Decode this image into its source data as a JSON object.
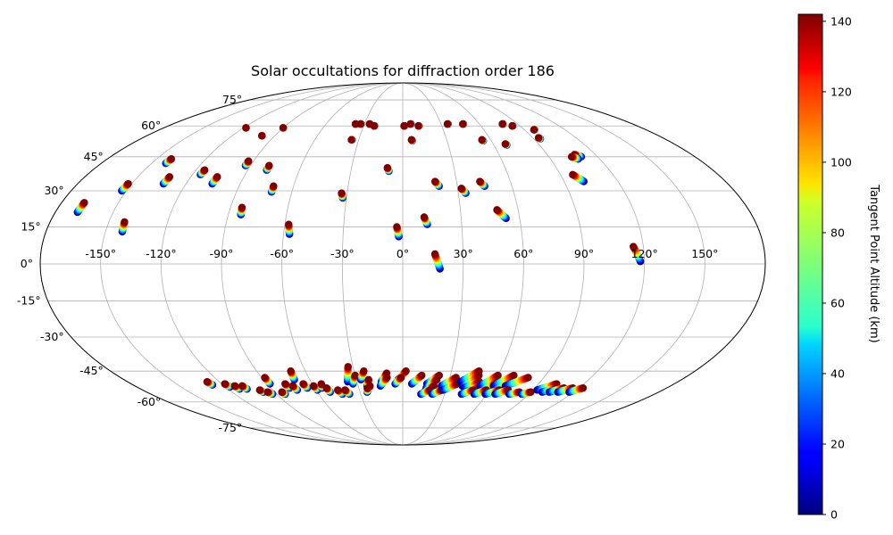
{
  "chart_data": {
    "type": "scatter",
    "projection": "mollweide",
    "title": "Solar occultations for diffraction order 186",
    "xlabel": "",
    "ylabel": "",
    "grid": true,
    "lon_ticks": [
      -150,
      -120,
      -90,
      -60,
      -30,
      0,
      30,
      60,
      90,
      120,
      150
    ],
    "lon_tick_labels": [
      "-150°",
      "-120°",
      "-90°",
      "-60°",
      "-30°",
      "0°",
      "30°",
      "60°",
      "90°",
      "120°",
      "150°"
    ],
    "lat_ticks": [
      -75,
      -60,
      -45,
      -30,
      -15,
      0,
      15,
      30,
      45,
      60,
      75
    ],
    "lat_tick_labels": [
      "-75°",
      "-60°",
      "-45°",
      "-30°",
      "-15°",
      "0°",
      "15°",
      "30°",
      "45°",
      "60°",
      "75°"
    ],
    "colorbar": {
      "label": "Tangent Point Altitude (km)",
      "range": [
        0,
        142
      ],
      "ticks": [
        0,
        20,
        40,
        60,
        80,
        100,
        120,
        140
      ],
      "tick_labels": [
        "0",
        "20",
        "40",
        "60",
        "80",
        "100",
        "120",
        "140"
      ],
      "colormap": "jet"
    },
    "tracks_note_units": "each track: longitude/latitude (deg) at top altitude 142 km and at bottom altitude 0 km",
    "tracks": [
      {
        "lon_top": -168,
        "lat_top": 25,
        "lon_bot": -168.5,
        "lat_bot": 21
      },
      {
        "lon_top": -152,
        "lat_top": 33,
        "lon_bot": -152.5,
        "lat_bot": 30
      },
      {
        "lon_top": -142,
        "lat_top": 17,
        "lon_bot": -141.5,
        "lat_bot": 13
      },
      {
        "lon_top": -141,
        "lat_top": 44,
        "lon_bot": -141.5,
        "lat_bot": 42
      },
      {
        "lon_top": -132,
        "lat_top": 36,
        "lon_bot": -132.5,
        "lat_bot": 33
      },
      {
        "lon_top": -115,
        "lat_top": 39,
        "lon_bot": -115.5,
        "lat_bot": 37
      },
      {
        "lon_top": -105,
        "lat_top": 36,
        "lon_bot": -105.5,
        "lat_bot": 33
      },
      {
        "lon_top": -93,
        "lat_top": 43,
        "lon_bot": -93,
        "lat_bot": 41
      },
      {
        "lon_top": -84,
        "lat_top": 23,
        "lon_bot": -83.5,
        "lat_bot": 20
      },
      {
        "lon_top": -79,
        "lat_top": 41,
        "lon_bot": -79,
        "lat_bot": 39
      },
      {
        "lon_top": -71,
        "lat_top": 32,
        "lon_bot": -71,
        "lat_bot": 29.5
      },
      {
        "lon_top": -58,
        "lat_top": 16,
        "lon_bot": -57,
        "lat_bot": 12
      },
      {
        "lon_top": -33,
        "lat_top": 29,
        "lon_bot": -32,
        "lat_bot": 27
      },
      {
        "lon_top": -9,
        "lat_top": 40,
        "lon_bot": -8,
        "lat_bot": 38.5
      },
      {
        "lon_top": -3,
        "lat_top": 15,
        "lon_bot": -2,
        "lat_bot": 11
      },
      {
        "lon_top": 11,
        "lat_top": 19,
        "lon_bot": 12.5,
        "lat_bot": 16
      },
      {
        "lon_top": 16,
        "lat_top": 4,
        "lon_bot": 18.5,
        "lat_bot": -2
      },
      {
        "lon_top": 18,
        "lat_top": 34,
        "lon_bot": 20,
        "lat_bot": 32
      },
      {
        "lon_top": 32,
        "lat_top": 31,
        "lon_bot": 34,
        "lat_bot": 29
      },
      {
        "lon_top": 43,
        "lat_top": 34,
        "lon_bot": 45,
        "lat_bot": 32
      },
      {
        "lon_top": 49,
        "lat_top": 22,
        "lon_bot": 53,
        "lat_bot": 18.5
      },
      {
        "lon_top": 97,
        "lat_top": 37,
        "lon_bot": 101,
        "lat_bot": 34
      },
      {
        "lon_top": 107,
        "lat_top": 46,
        "lon_bot": 110,
        "lat_bot": 45
      },
      {
        "lon_top": 115,
        "lat_top": 7,
        "lon_bot": 118,
        "lat_bot": 1
      },
      {
        "lon_top": -37,
        "lat_top": 61,
        "lon_bot": -36.5,
        "lat_bot": 61
      },
      {
        "lon_top": -33,
        "lat_top": 61,
        "lon_bot": -32.5,
        "lat_bot": 61
      },
      {
        "lon_top": -26,
        "lat_top": 61,
        "lon_bot": -25.5,
        "lat_bot": 61
      },
      {
        "lon_top": -22,
        "lat_top": 60,
        "lon_bot": -21.5,
        "lat_bot": 60
      },
      {
        "lon_top": -35,
        "lat_top": 53,
        "lon_bot": -34.5,
        "lat_bot": 53
      },
      {
        "lon_top": 1,
        "lat_top": 60,
        "lon_bot": 1.5,
        "lat_bot": 60
      },
      {
        "lon_top": 6,
        "lat_top": 61,
        "lon_bot": 6.5,
        "lat_bot": 61
      },
      {
        "lon_top": 12,
        "lat_top": 60,
        "lon_bot": 12.5,
        "lat_bot": 60
      },
      {
        "lon_top": 6,
        "lat_top": 53,
        "lon_bot": 6.5,
        "lat_bot": 52.5
      },
      {
        "lon_top": 35,
        "lat_top": 61,
        "lon_bot": 35.5,
        "lat_bot": 61
      },
      {
        "lon_top": 47,
        "lat_top": 61,
        "lon_bot": 47.5,
        "lat_bot": 61
      },
      {
        "lon_top": 78,
        "lat_top": 61,
        "lon_bot": 78.5,
        "lat_bot": 61
      },
      {
        "lon_top": 84,
        "lat_top": 60,
        "lon_bot": 84.5,
        "lat_bot": 60
      },
      {
        "lon_top": 54,
        "lat_top": 53,
        "lon_bot": 54.5,
        "lat_bot": 52.5
      },
      {
        "lon_top": 68,
        "lat_top": 51,
        "lon_bot": 68.5,
        "lat_bot": 50.5
      },
      {
        "lon_top": 94,
        "lat_top": 54,
        "lon_bot": 94.5,
        "lat_bot": 53.5
      },
      {
        "lon_top": 97,
        "lat_top": 58,
        "lon_bot": 97.5,
        "lat_bot": 58
      },
      {
        "lon_top": 104,
        "lat_top": 45,
        "lon_bot": 107,
        "lat_bot": 44
      },
      {
        "lon_top": -118,
        "lat_top": 59,
        "lon_bot": -118,
        "lat_bot": 59
      },
      {
        "lon_top": -99,
        "lat_top": 55,
        "lon_bot": -99,
        "lat_bot": 55
      },
      {
        "lon_top": -90,
        "lat_top": 59,
        "lon_bot": -90,
        "lat_bot": 59
      },
      {
        "lon_top": -128,
        "lat_top": -50,
        "lon_bot": -127,
        "lat_bot": -51.5
      },
      {
        "lon_top": -118,
        "lat_top": -51,
        "lon_bot": -117,
        "lat_bot": -52.5
      },
      {
        "lon_top": -113,
        "lat_top": -52,
        "lon_bot": -112,
        "lat_bot": -53.5
      },
      {
        "lon_top": -108,
        "lat_top": -52,
        "lon_bot": -107,
        "lat_bot": -53.5
      },
      {
        "lon_top": -99,
        "lat_top": -54,
        "lon_bot": -98,
        "lat_bot": -55
      },
      {
        "lon_top": -95,
        "lat_top": -55,
        "lon_bot": -93,
        "lat_bot": -56
      },
      {
        "lon_top": -88,
        "lat_top": -48,
        "lon_bot": -88,
        "lat_bot": -51
      },
      {
        "lon_top": -85,
        "lat_top": -55,
        "lon_bot": -84,
        "lat_bot": -56
      },
      {
        "lon_top": -78,
        "lat_top": -51,
        "lon_bot": -77,
        "lat_bot": -53
      },
      {
        "lon_top": -74,
        "lat_top": -52,
        "lon_bot": -73,
        "lat_bot": -54
      },
      {
        "lon_top": -69,
        "lat_top": -45,
        "lon_bot": -70,
        "lat_bot": -49
      },
      {
        "lon_top": -66,
        "lat_top": -51,
        "lon_bot": -65,
        "lat_bot": -53
      },
      {
        "lon_top": -60,
        "lat_top": -52,
        "lon_bot": -59,
        "lat_bot": -54
      },
      {
        "lon_top": -54,
        "lat_top": -51,
        "lon_bot": -55,
        "lat_bot": -53
      },
      {
        "lon_top": -52,
        "lat_top": -53,
        "lon_bot": -51,
        "lat_bot": -55
      },
      {
        "lon_top": -45,
        "lat_top": -54,
        "lon_bot": -43,
        "lat_bot": -56
      },
      {
        "lon_top": -40,
        "lat_top": -54,
        "lon_bot": -38,
        "lat_bot": -56
      },
      {
        "lon_top": -33,
        "lat_top": -43,
        "lon_bot": -36,
        "lat_bot": -50
      },
      {
        "lon_top": -30,
        "lat_top": -47,
        "lon_bot": -33,
        "lat_bot": -51
      },
      {
        "lon_top": -24,
        "lat_top": -45,
        "lon_bot": -27,
        "lat_bot": -49
      },
      {
        "lon_top": -22,
        "lat_top": -49,
        "lon_bot": -24,
        "lat_bot": -52
      },
      {
        "lon_top": -22,
        "lat_top": -52,
        "lon_bot": -24,
        "lat_bot": -54
      },
      {
        "lon_top": -24,
        "lat_top": -53,
        "lon_bot": -25,
        "lat_bot": -55
      },
      {
        "lon_top": -10,
        "lat_top": -46,
        "lon_bot": -14,
        "lat_bot": -50
      },
      {
        "lon_top": -10,
        "lat_top": -48,
        "lon_bot": -15,
        "lat_bot": -52
      },
      {
        "lon_top": 2,
        "lat_top": -45,
        "lon_bot": -3,
        "lat_bot": -49
      },
      {
        "lon_top": -1,
        "lat_top": -48,
        "lon_bot": -5,
        "lat_bot": -51
      },
      {
        "lon_top": 12,
        "lat_top": -47,
        "lon_bot": 6,
        "lat_bot": -51
      },
      {
        "lon_top": 23,
        "lat_top": -47,
        "lon_bot": 16,
        "lat_bot": -51
      },
      {
        "lon_top": 22,
        "lat_top": -49,
        "lon_bot": 16,
        "lat_bot": -53
      },
      {
        "lon_top": 21,
        "lat_top": -52,
        "lon_bot": 15,
        "lat_bot": -55
      },
      {
        "lon_top": 19,
        "lat_top": -54,
        "lon_bot": 13,
        "lat_bot": -56
      },
      {
        "lon_top": 27,
        "lat_top": -54,
        "lon_bot": 21,
        "lat_bot": -56
      },
      {
        "lon_top": 34,
        "lat_top": -48,
        "lon_bot": 26,
        "lat_bot": -52
      },
      {
        "lon_top": 36,
        "lat_top": -51,
        "lon_bot": 28,
        "lat_bot": -54
      },
      {
        "lon_top": 47,
        "lat_top": -45,
        "lon_bot": 38,
        "lat_bot": -50
      },
      {
        "lon_top": 48,
        "lat_top": -47,
        "lon_bot": 40,
        "lat_bot": -52
      },
      {
        "lon_top": 50,
        "lat_top": -50,
        "lon_bot": 42,
        "lat_bot": -53
      },
      {
        "lon_top": 52,
        "lat_top": -52,
        "lon_bot": 44,
        "lat_bot": -55
      },
      {
        "lon_top": 49,
        "lat_top": -54,
        "lon_bot": 42,
        "lat_bot": -56
      },
      {
        "lon_top": 60,
        "lat_top": -47,
        "lon_bot": 52,
        "lat_bot": -52
      },
      {
        "lon_top": 62,
        "lat_top": -50,
        "lon_bot": 54,
        "lat_bot": -54
      },
      {
        "lon_top": 58,
        "lat_top": -54,
        "lon_bot": 51,
        "lat_bot": -56
      },
      {
        "lon_top": 70,
        "lat_top": -47,
        "lon_bot": 61,
        "lat_bot": -52
      },
      {
        "lon_top": 72,
        "lat_top": -50,
        "lon_bot": 63,
        "lat_bot": -54
      },
      {
        "lon_top": 67,
        "lat_top": -54,
        "lon_bot": 59,
        "lat_bot": -56
      },
      {
        "lon_top": 80,
        "lat_top": -48,
        "lon_bot": 69,
        "lat_bot": -52
      },
      {
        "lon_top": 73,
        "lat_top": -54,
        "lon_bot": 66,
        "lat_bot": -56
      },
      {
        "lon_top": 82,
        "lat_top": -55,
        "lon_bot": 76,
        "lat_bot": -56
      },
      {
        "lon_top": 90,
        "lat_top": -55,
        "lon_bot": 85,
        "lat_bot": -56
      },
      {
        "lon_top": 102,
        "lat_top": -51,
        "lon_bot": 93,
        "lat_bot": -54
      },
      {
        "lon_top": 105,
        "lat_top": -53,
        "lon_bot": 98,
        "lat_bot": -55
      },
      {
        "lon_top": 110,
        "lat_top": -53,
        "lon_bot": 103,
        "lat_bot": -55
      },
      {
        "lon_top": 116,
        "lat_top": -53,
        "lon_bot": 109,
        "lat_bot": -55
      },
      {
        "lon_top": 123,
        "lat_top": -53,
        "lon_bot": 117,
        "lat_bot": -55
      }
    ]
  }
}
